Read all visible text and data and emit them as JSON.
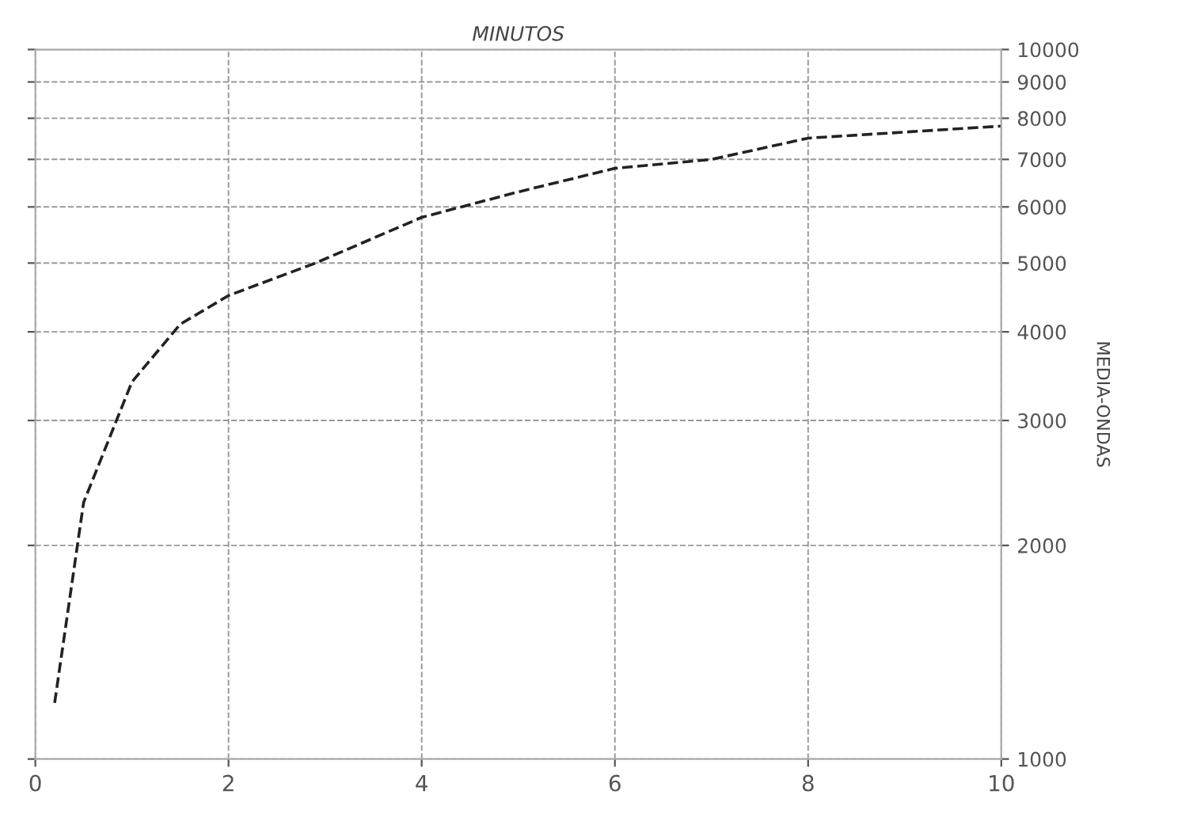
{
  "chart_data": {
    "type": "line",
    "xlabel": "MINUTOS",
    "ylabel": "MEDIA-ONDAS",
    "x": [
      0.2,
      0.5,
      1.0,
      1.5,
      2.0,
      2.9,
      4.0,
      5.0,
      6.0,
      7.0,
      8.0,
      10.0
    ],
    "series": [
      {
        "color": "#222222",
        "values": [
          1200,
          2300,
          3400,
          4100,
          4500,
          5000,
          5800,
          6300,
          6800,
          7000,
          7500,
          7800
        ]
      }
    ],
    "xlim": [
      0,
      10
    ],
    "xticks": [
      0,
      2,
      4,
      6,
      8,
      10
    ],
    "ylim": [
      1000,
      10000
    ],
    "yticks": [
      1000,
      2000,
      3000,
      4000,
      5000,
      6000,
      7000,
      8000,
      9000,
      10000
    ],
    "log": "y",
    "grid": true,
    "line_style": "dashed",
    "marker": "none"
  }
}
